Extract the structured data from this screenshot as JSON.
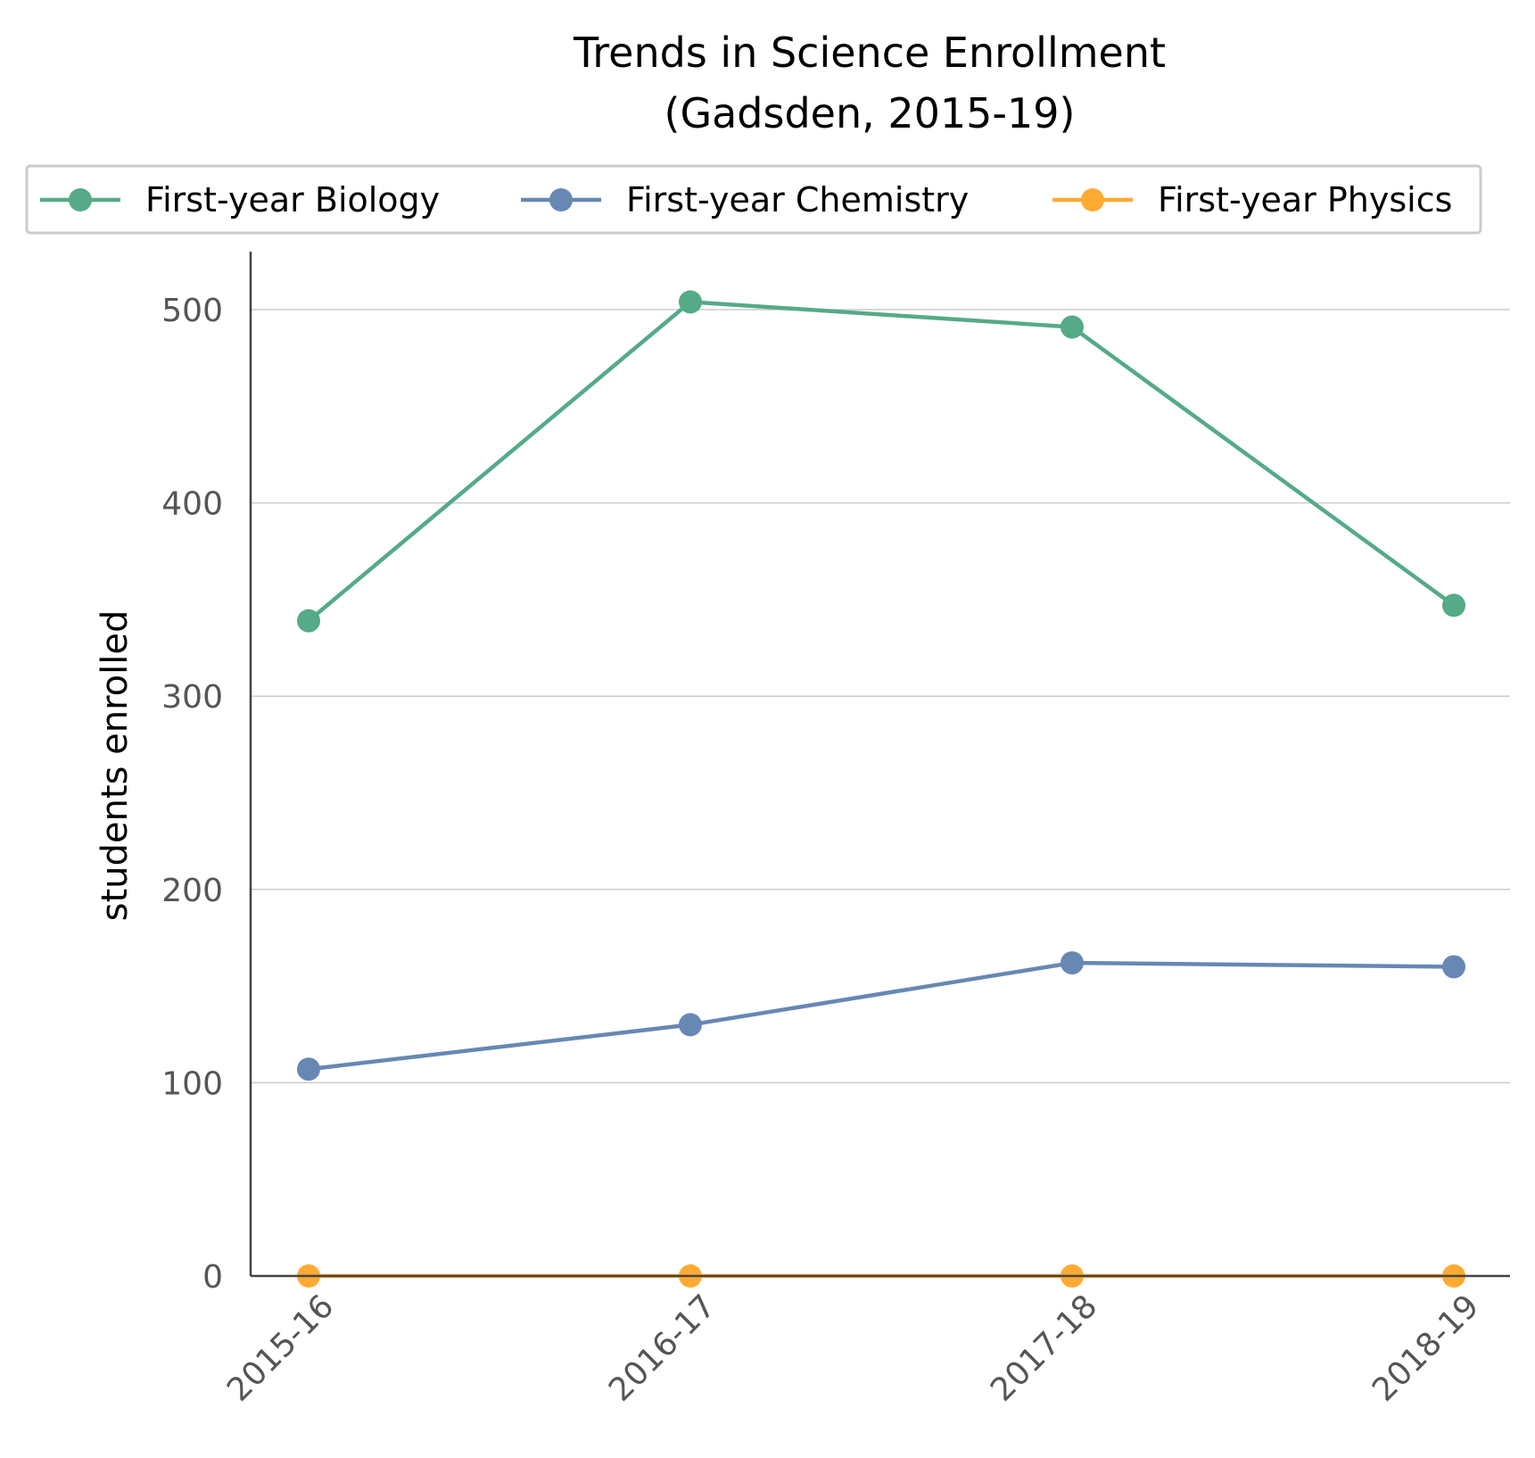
{
  "chart_data": {
    "type": "line",
    "title_lines": [
      "Trends in Science Enrollment",
      "(Gadsden, 2015-19)"
    ],
    "ylabel": "students enrolled",
    "xlabel": "",
    "categories": [
      "2015-16",
      "2016-17",
      "2017-18",
      "2018-19"
    ],
    "yticks": [
      0,
      100,
      200,
      300,
      400,
      500
    ],
    "ylim": [
      0,
      530
    ],
    "grid": "horizontal",
    "legend_position": "top",
    "series": [
      {
        "name": "First-year Biology",
        "color": "#55aa88",
        "values": [
          339,
          504,
          491,
          347
        ]
      },
      {
        "name": "First-year Chemistry",
        "color": "#6688b3",
        "values": [
          107,
          130,
          162,
          160
        ]
      },
      {
        "name": "First-year Physics",
        "color": "#ffaa33",
        "values": [
          0,
          0,
          0,
          0
        ]
      }
    ]
  }
}
